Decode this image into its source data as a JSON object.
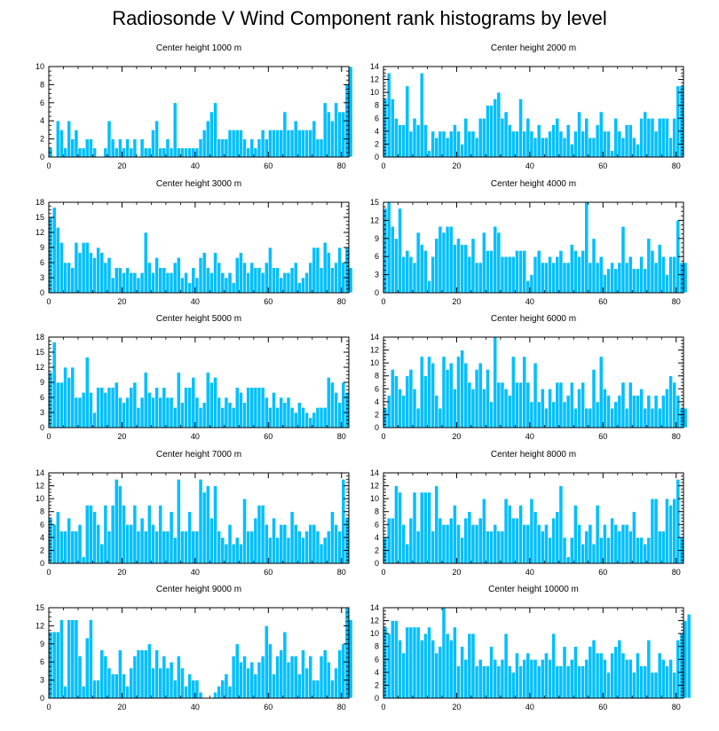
{
  "figure": {
    "title": "Radiosonde V Wind Component rank histograms by level"
  },
  "style": {
    "bar_color": "#00BFFF",
    "bar_edge": "#ffffff",
    "axis_color": "#000000"
  },
  "chart_data": [
    {
      "type": "bar",
      "title": "Center height 1000 m",
      "xlim": [
        0,
        82
      ],
      "ylim": [
        0,
        10
      ],
      "xticks": [
        0,
        20,
        40,
        60,
        80
      ],
      "yticks": [
        0,
        2,
        4,
        6,
        8,
        10
      ],
      "values": [
        1,
        0,
        4,
        3,
        1,
        4,
        2,
        3,
        1,
        1,
        2,
        2,
        1,
        0,
        0,
        1,
        4,
        2,
        1,
        2,
        1,
        2,
        1,
        2,
        0,
        2,
        1,
        1,
        3,
        4,
        1,
        1,
        2,
        1,
        6,
        1,
        1,
        1,
        1,
        1,
        1,
        2,
        3,
        4,
        5,
        6,
        2,
        2,
        2,
        3,
        3,
        3,
        3,
        2,
        1,
        2,
        1,
        2,
        3,
        2,
        3,
        3,
        3,
        3,
        5,
        3,
        3,
        4,
        3,
        3,
        3,
        3,
        4,
        2,
        2,
        6,
        5,
        4,
        6,
        5,
        5,
        8,
        10
      ]
    },
    {
      "type": "bar",
      "title": "Center height 2000 m",
      "xlim": [
        0,
        82
      ],
      "ylim": [
        0,
        14
      ],
      "xticks": [
        0,
        20,
        40,
        60,
        80
      ],
      "yticks": [
        0,
        2,
        4,
        6,
        8,
        10,
        12,
        14
      ],
      "values": [
        9,
        13,
        9,
        6,
        5,
        5,
        11,
        4,
        6,
        5,
        13,
        5,
        1,
        4,
        3,
        4,
        4,
        3,
        4,
        5,
        4,
        2,
        6,
        4,
        4,
        3,
        6,
        6,
        8,
        8,
        9,
        10,
        6,
        7,
        5,
        4,
        4,
        9,
        4,
        6,
        4,
        3,
        5,
        3,
        3,
        4,
        5,
        6,
        4,
        3,
        5,
        2,
        4,
        7,
        4,
        6,
        3,
        3,
        5,
        7,
        4,
        4,
        1,
        6,
        4,
        3,
        5,
        5,
        3,
        2,
        6,
        7,
        6,
        6,
        4,
        6,
        6,
        6,
        3,
        6,
        11,
        11
      ]
    },
    {
      "type": "bar",
      "title": "Center height 3000 m",
      "xlim": [
        0,
        82
      ],
      "ylim": [
        0,
        18
      ],
      "xticks": [
        0,
        20,
        40,
        60,
        80
      ],
      "yticks": [
        0,
        3,
        6,
        9,
        12,
        15,
        18
      ],
      "values": [
        15,
        17,
        13,
        10,
        6,
        6,
        5,
        10,
        8,
        10,
        10,
        8,
        7,
        9,
        8,
        6,
        7,
        3,
        5,
        5,
        4,
        5,
        4,
        4,
        3,
        4,
        12,
        6,
        4,
        7,
        5,
        5,
        4,
        4,
        6,
        7,
        3,
        4,
        2,
        5,
        3,
        7,
        8,
        5,
        4,
        8,
        6,
        4,
        3,
        4,
        2,
        7,
        8,
        6,
        4,
        6,
        5,
        5,
        4,
        6,
        9,
        5,
        5,
        3,
        4,
        4,
        5,
        6,
        2,
        3,
        4,
        6,
        9,
        9,
        5,
        10,
        8,
        5,
        6,
        9,
        6,
        9,
        5
      ]
    },
    {
      "type": "bar",
      "title": "Center height 4000 m",
      "xlim": [
        0,
        82
      ],
      "ylim": [
        0,
        15
      ],
      "xticks": [
        0,
        20,
        40,
        60,
        80
      ],
      "yticks": [
        0,
        3,
        6,
        9,
        12,
        15
      ],
      "values": [
        14,
        15,
        11,
        9,
        14,
        6,
        7,
        6,
        5,
        10,
        8,
        7,
        2,
        6,
        9,
        11,
        10,
        11,
        11,
        8,
        9,
        8,
        8,
        6,
        9,
        5,
        5,
        10,
        7,
        7,
        11,
        10,
        6,
        6,
        6,
        6,
        7,
        7,
        7,
        2,
        3,
        6,
        7,
        5,
        5,
        6,
        5,
        6,
        7,
        5,
        5,
        8,
        7,
        6,
        7,
        15,
        5,
        9,
        5,
        6,
        3,
        4,
        5,
        4,
        5,
        11,
        5,
        6,
        4,
        4,
        6,
        4,
        9,
        7,
        5,
        8,
        6,
        3,
        6,
        6,
        12,
        5,
        5
      ]
    },
    {
      "type": "bar",
      "title": "Center height 5000 m",
      "xlim": [
        0,
        82
      ],
      "ylim": [
        0,
        18
      ],
      "xticks": [
        0,
        20,
        40,
        60,
        80
      ],
      "yticks": [
        0,
        3,
        6,
        9,
        12,
        15,
        18
      ],
      "values": [
        11,
        17,
        9,
        9,
        12,
        10,
        12,
        6,
        6,
        7,
        14,
        7,
        3,
        8,
        8,
        7,
        8,
        8,
        9,
        6,
        5,
        6,
        8,
        9,
        4,
        6,
        11,
        7,
        6,
        8,
        6,
        8,
        6,
        6,
        4,
        11,
        5,
        8,
        8,
        10,
        6,
        4,
        5,
        11,
        9,
        10,
        6,
        4,
        6,
        5,
        4,
        8,
        7,
        5,
        8,
        8,
        8,
        8,
        8,
        6,
        4,
        7,
        4,
        6,
        5,
        6,
        4,
        3,
        5,
        4,
        3,
        2,
        3,
        4,
        4,
        4,
        10,
        9,
        7,
        5,
        9,
        7
      ]
    },
    {
      "type": "bar",
      "title": "Center height 6000 m",
      "xlim": [
        0,
        82
      ],
      "ylim": [
        0,
        14
      ],
      "xticks": [
        0,
        20,
        40,
        60,
        80
      ],
      "yticks": [
        0,
        2,
        4,
        6,
        8,
        10,
        12,
        14
      ],
      "values": [
        3,
        5,
        9,
        8,
        6,
        5,
        8,
        9,
        6,
        3,
        11,
        8,
        11,
        10,
        5,
        3,
        11,
        9,
        10,
        6,
        11,
        12,
        10,
        7,
        6,
        9,
        10,
        6,
        9,
        4,
        14,
        7,
        7,
        6,
        5,
        11,
        7,
        7,
        11,
        7,
        4,
        10,
        4,
        6,
        3,
        6,
        4,
        7,
        7,
        4,
        5,
        7,
        3,
        6,
        7,
        3,
        3,
        9,
        4,
        11,
        6,
        5,
        3,
        4,
        5,
        7,
        3,
        7,
        5,
        5,
        6,
        3,
        5,
        3,
        5,
        3,
        5,
        6,
        8,
        7,
        5,
        3,
        3
      ]
    },
    {
      "type": "bar",
      "title": "Center height 7000 m",
      "xlim": [
        0,
        82
      ],
      "ylim": [
        0,
        14
      ],
      "xticks": [
        0,
        20,
        40,
        60,
        80
      ],
      "yticks": [
        0,
        2,
        4,
        6,
        8,
        10,
        12,
        14
      ],
      "values": [
        7,
        6,
        8,
        5,
        5,
        7,
        5,
        5,
        6,
        1,
        9,
        9,
        8,
        6,
        3,
        9,
        5,
        9,
        13,
        12,
        9,
        6,
        6,
        9,
        5,
        7,
        5,
        9,
        6,
        5,
        9,
        5,
        5,
        8,
        4,
        13,
        5,
        5,
        8,
        5,
        5,
        13,
        11,
        12,
        7,
        12,
        5,
        4,
        3,
        6,
        3,
        4,
        3,
        10,
        5,
        5,
        7,
        9,
        9,
        6,
        4,
        7,
        4,
        6,
        6,
        4,
        8,
        6,
        5,
        4,
        5,
        6,
        6,
        5,
        3,
        4,
        5,
        8,
        6,
        5,
        13,
        7
      ]
    },
    {
      "type": "bar",
      "title": "Center height 8000 m",
      "xlim": [
        0,
        82
      ],
      "ylim": [
        0,
        14
      ],
      "xticks": [
        0,
        20,
        40,
        60,
        80
      ],
      "yticks": [
        0,
        2,
        4,
        6,
        8,
        10,
        12,
        14
      ],
      "values": [
        4,
        7,
        7,
        12,
        11,
        6,
        3,
        7,
        11,
        5,
        11,
        11,
        11,
        5,
        12,
        7,
        6,
        6,
        7,
        9,
        6,
        4,
        7,
        8,
        6,
        6,
        7,
        10,
        5,
        5,
        6,
        5,
        5,
        10,
        9,
        7,
        7,
        9,
        6,
        6,
        10,
        8,
        6,
        5,
        6,
        4,
        7,
        8,
        12,
        4,
        1,
        4,
        9,
        6,
        3,
        5,
        6,
        3,
        9,
        4,
        6,
        4,
        7,
        6,
        5,
        6,
        6,
        5,
        8,
        4,
        4,
        3,
        4,
        10,
        10,
        5,
        5,
        10,
        9,
        10,
        13,
        4
      ]
    },
    {
      "type": "bar",
      "title": "Center height 9000 m",
      "xlim": [
        0,
        82
      ],
      "ylim": [
        0,
        15
      ],
      "xticks": [
        0,
        20,
        40,
        60,
        80
      ],
      "yticks": [
        0,
        3,
        6,
        9,
        12,
        15
      ],
      "values": [
        11,
        11,
        11,
        13,
        2,
        13,
        13,
        13,
        7,
        2,
        10,
        13,
        3,
        3,
        8,
        7,
        5,
        4,
        4,
        8,
        4,
        2,
        5,
        7,
        8,
        8,
        8,
        9,
        5,
        8,
        5,
        7,
        5,
        6,
        3,
        7,
        5,
        2,
        4,
        3,
        3,
        1,
        0,
        0,
        0,
        1,
        2,
        3,
        4,
        2,
        7,
        9,
        6,
        7,
        5,
        6,
        4,
        6,
        7,
        12,
        9,
        4,
        7,
        8,
        11,
        6,
        7,
        7,
        4,
        8,
        5,
        7,
        3,
        3,
        7,
        8,
        6,
        3,
        5,
        8,
        9,
        15,
        13
      ]
    },
    {
      "type": "bar",
      "title": "Center height 10000 m",
      "xlim": [
        0,
        82
      ],
      "ylim": [
        0,
        14
      ],
      "xticks": [
        0,
        20,
        40,
        60,
        80
      ],
      "yticks": [
        0,
        2,
        4,
        6,
        8,
        10,
        12,
        14
      ],
      "values": [
        11,
        10,
        12,
        12,
        9,
        7,
        11,
        11,
        11,
        11,
        9,
        10,
        11,
        9,
        7,
        8,
        14,
        10,
        9,
        11,
        5,
        8,
        6,
        10,
        10,
        5,
        6,
        5,
        5,
        8,
        6,
        5,
        6,
        10,
        5,
        4,
        7,
        5,
        6,
        7,
        6,
        6,
        5,
        6,
        7,
        6,
        10,
        5,
        5,
        8,
        5,
        6,
        8,
        5,
        5,
        6,
        8,
        9,
        7,
        7,
        6,
        4,
        7,
        8,
        9,
        7,
        6,
        6,
        4,
        7,
        5,
        5,
        9,
        4,
        4,
        7,
        6,
        5,
        6,
        4,
        9,
        10,
        12,
        13
      ]
    }
  ]
}
